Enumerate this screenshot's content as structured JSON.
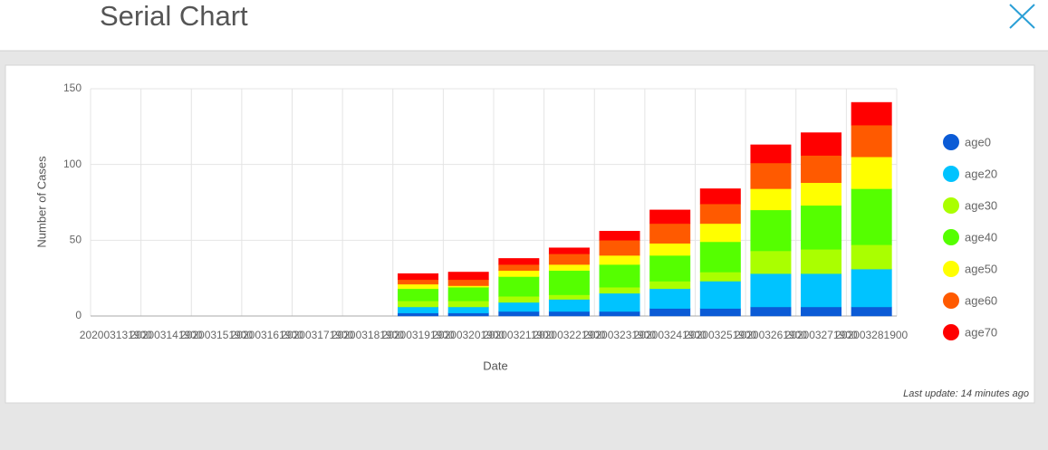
{
  "header": {
    "title": "Serial Chart"
  },
  "chart_data": {
    "type": "stacked-bar",
    "x_label": "Date",
    "y_label": "Number of Cases",
    "categories": [
      "202003131900",
      "202003141900",
      "202003151900",
      "202003161900",
      "202003171900",
      "202003181900",
      "202003191900",
      "202003201900",
      "202003211900",
      "202003221900",
      "202003231900",
      "202003241900",
      "202003251900",
      "202003261900",
      "202003271900",
      "202003281900"
    ],
    "series": [
      {
        "name": "age0",
        "color": "#0b5bd6",
        "values": [
          0,
          0,
          0,
          0,
          0,
          0,
          2,
          2,
          3,
          3,
          3,
          5,
          5,
          6,
          6,
          6
        ]
      },
      {
        "name": "age20",
        "color": "#00c3ff",
        "values": [
          0,
          0,
          0,
          0,
          0,
          0,
          4,
          4,
          6,
          8,
          12,
          13,
          18,
          22,
          22,
          25
        ]
      },
      {
        "name": "age30",
        "color": "#aaff00",
        "values": [
          0,
          0,
          0,
          0,
          0,
          0,
          4,
          4,
          4,
          3,
          4,
          5,
          6,
          15,
          16,
          16
        ]
      },
      {
        "name": "age40",
        "color": "#55ff00",
        "values": [
          0,
          0,
          0,
          0,
          0,
          0,
          8,
          9,
          13,
          16,
          15,
          17,
          20,
          27,
          29,
          37
        ]
      },
      {
        "name": "age50",
        "color": "#ffff00",
        "values": [
          0,
          0,
          0,
          0,
          0,
          0,
          3,
          1,
          4,
          4,
          6,
          8,
          12,
          14,
          15,
          21
        ]
      },
      {
        "name": "age60",
        "color": "#ff5a00",
        "values": [
          0,
          0,
          0,
          0,
          0,
          0,
          3,
          4,
          4,
          7,
          10,
          13,
          13,
          17,
          18,
          21
        ]
      },
      {
        "name": "age70",
        "color": "#ff0000",
        "values": [
          0,
          0,
          0,
          0,
          0,
          0,
          4,
          5,
          4,
          4,
          6,
          9,
          10,
          12,
          15,
          15
        ]
      }
    ],
    "ylim": [
      0,
      150
    ],
    "yticks": [
      0,
      50,
      100,
      150
    ],
    "grid": true
  },
  "footer": {
    "last_update": "Last update: 14 minutes ago"
  }
}
